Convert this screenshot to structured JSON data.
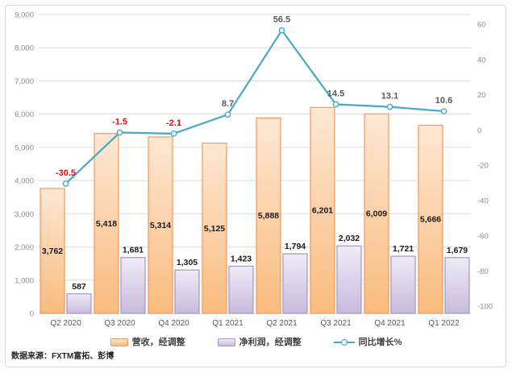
{
  "chart_data": {
    "type": "combo-bar-line",
    "title": "",
    "categories": [
      "Q2 2020",
      "Q3 2020",
      "Q4 2020",
      "Q1 2021",
      "Q2 2021",
      "Q3 2021",
      "Q4 2021",
      "Q1 2022"
    ],
    "series": [
      {
        "name": "营收，经调整",
        "type": "bar",
        "axis": "left",
        "values": [
          3762,
          5418,
          5314,
          5125,
          5888,
          6201,
          6009,
          5666
        ],
        "labels": [
          "3,762",
          "5,418",
          "5,314",
          "5,125",
          "5,888",
          "6,201",
          "6,009",
          "5,666"
        ]
      },
      {
        "name": "净利润，经调整",
        "type": "bar",
        "axis": "left",
        "values": [
          587,
          1681,
          1305,
          1423,
          1794,
          2032,
          1721,
          1679
        ],
        "labels": [
          "587",
          "1,681",
          "1,305",
          "1,423",
          "1,794",
          "2,032",
          "1,721",
          "1,679"
        ]
      },
      {
        "name": "同比增长%",
        "type": "line",
        "axis": "right",
        "values": [
          -30.5,
          -1.5,
          -2.1,
          8.7,
          56.5,
          14.5,
          13.1,
          10.6
        ],
        "labels": [
          "-30.5",
          "-1.5",
          "-2.1",
          "8.7",
          "56.5",
          "14.5",
          "13.1",
          "10.6"
        ]
      }
    ],
    "left_axis": {
      "min": 0,
      "max": 9000,
      "step": 1000,
      "tick_labels": [
        "0",
        "1,000",
        "2,000",
        "3,000",
        "4,000",
        "5,000",
        "6,000",
        "7,000",
        "8,000",
        "9,000"
      ]
    },
    "right_axis": {
      "min": -100,
      "max": 60,
      "step": 20,
      "tick_labels": [
        "-100",
        "-80",
        "-60",
        "-40",
        "-20",
        "0",
        "20",
        "40",
        "60"
      ]
    },
    "grid": "horizontal",
    "legend_position": "bottom"
  },
  "colors": {
    "revenue_fill_top": "#FDE8D4",
    "revenue_fill_bottom": "#FABB7E",
    "revenue_border": "#EE9A5B",
    "profit_fill_top": "#EFEBF7",
    "profit_fill_bottom": "#C8BBDD",
    "profit_border": "#A496C2",
    "line": "#47A9C7",
    "marker_fill": "#E9F6FB",
    "grid": "#DCDCDC",
    "axis_text": "#8C8C8C",
    "category_text": "#595959",
    "bar_label": "#1A1A1A",
    "line_label_positive": "#595959",
    "line_label_negative": "#FF0000"
  },
  "source_note": "数据来源：FXTM富拓、彭博"
}
